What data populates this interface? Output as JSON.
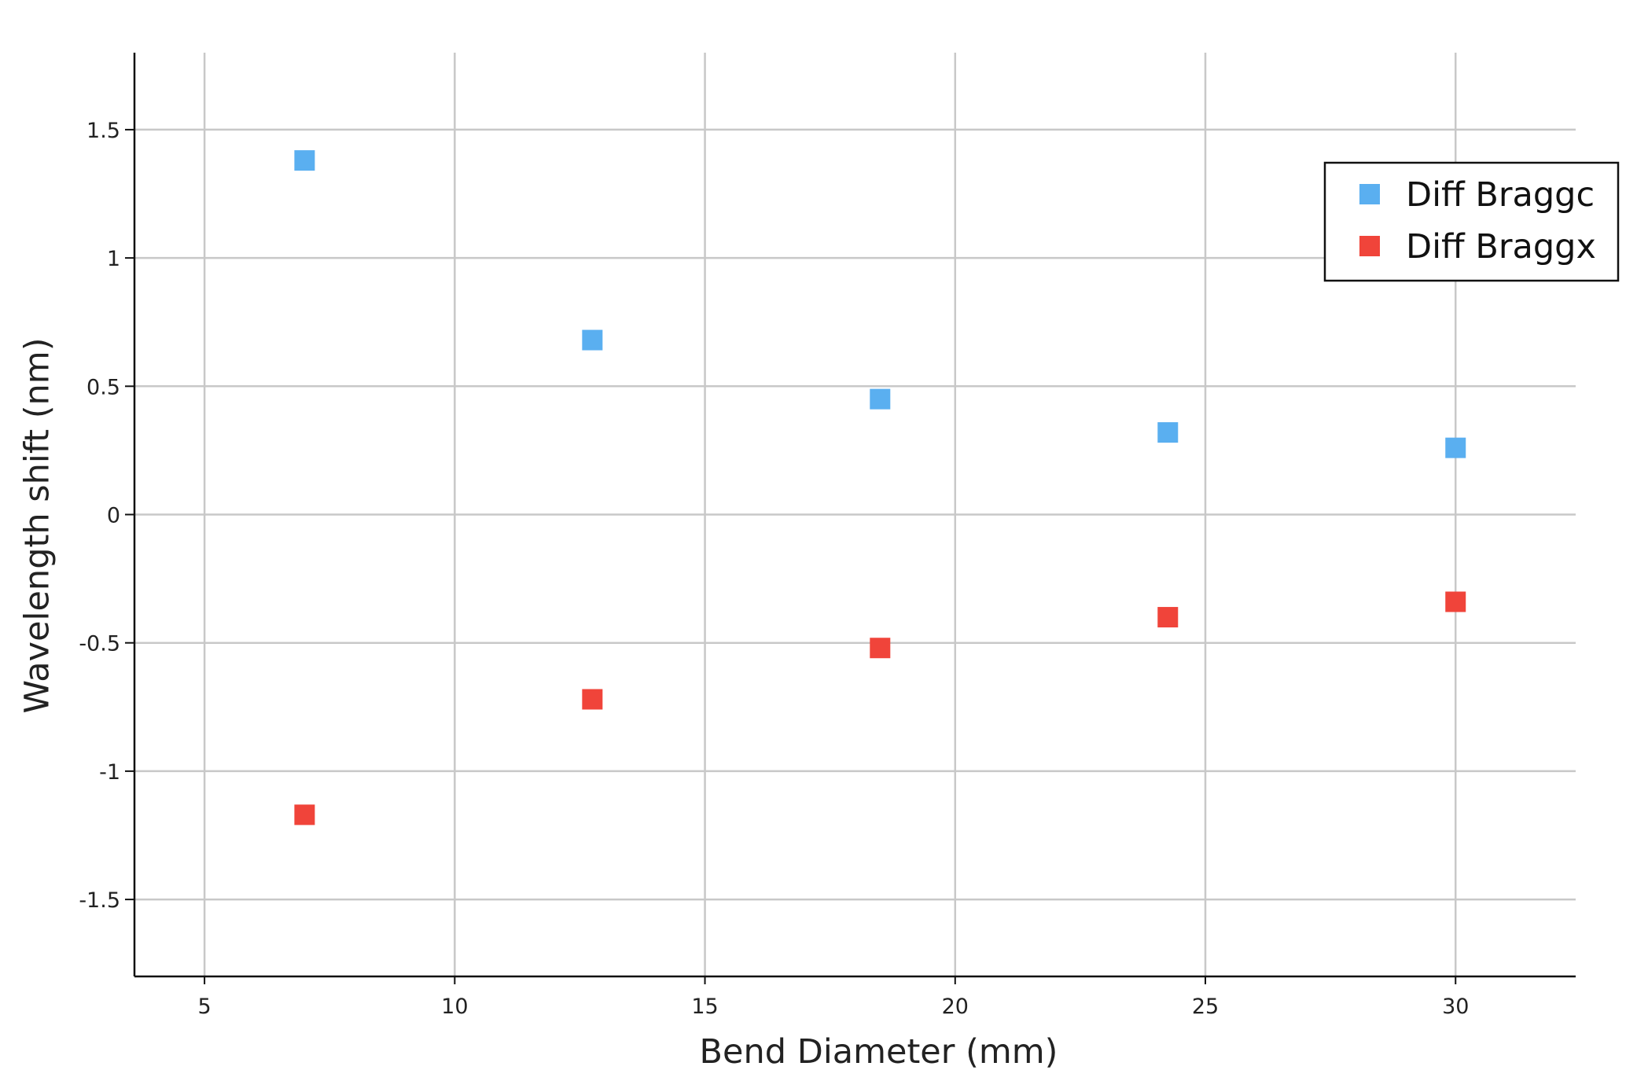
{
  "chart_data": {
    "type": "scatter",
    "title": "",
    "xlabel": "Bend Diameter (mm)",
    "ylabel": "Wavelength shift (nm)",
    "xlim": [
      3.6,
      32.4
    ],
    "ylim": [
      -1.8,
      1.8
    ],
    "xticks": [
      5,
      10,
      15,
      20,
      25,
      30
    ],
    "xtick_labels": [
      "5",
      "10",
      "15",
      "20",
      "25",
      "30"
    ],
    "yticks": [
      1.5,
      1,
      0.5,
      0,
      -0.5,
      -1,
      -1.5
    ],
    "ytick_labels": [
      "1.5",
      "1",
      "0.5",
      "0",
      "-0.5",
      "-1",
      "-1.5"
    ],
    "grid": true,
    "legend_position": "top-right",
    "series": [
      {
        "name": "Diff Braggc",
        "color": "#5aaff0",
        "marker": "square",
        "x": [
          7.0,
          12.75,
          18.5,
          24.25,
          30.0
        ],
        "y": [
          1.38,
          0.68,
          0.45,
          0.32,
          0.26
        ]
      },
      {
        "name": "Diff Braggx",
        "color": "#f0443a",
        "marker": "square",
        "x": [
          7.0,
          12.75,
          18.5,
          24.25,
          30.0
        ],
        "y": [
          -1.17,
          -0.72,
          -0.52,
          -0.4,
          -0.34
        ]
      }
    ]
  }
}
